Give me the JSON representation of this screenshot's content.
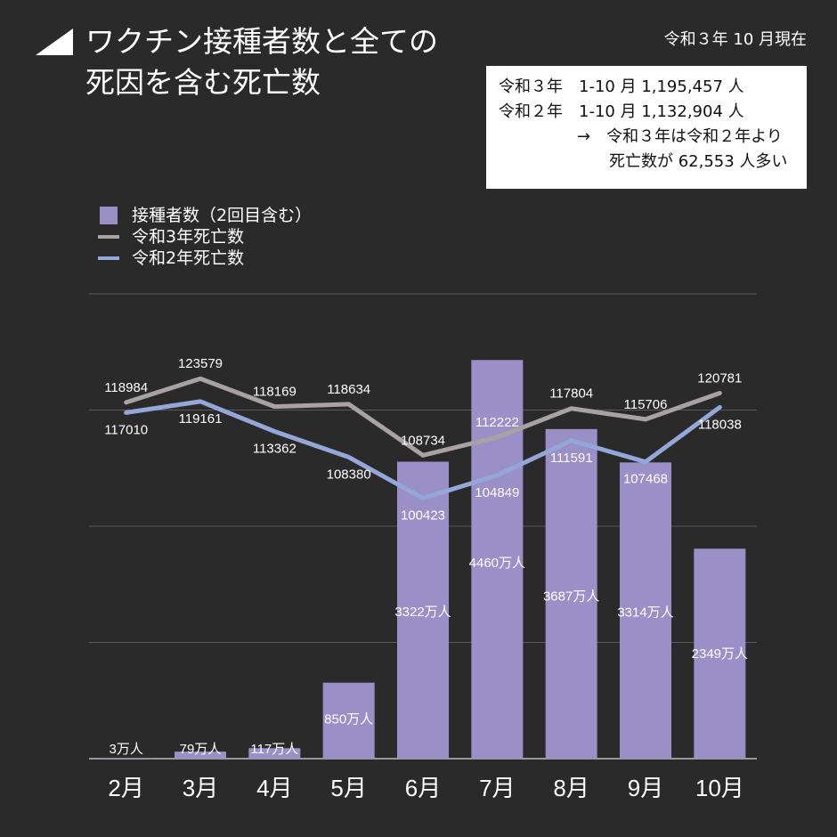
{
  "title_line1": "ワクチン接種者数と全ての",
  "title_line2": "死因を含む死亡数",
  "date_note": "令和３年 10 月現在",
  "infobox": {
    "line1": "令和３年　1-10 月 1,195,457 人",
    "line2": "令和２年　1-10 月 1,132,904 人",
    "line3": "→　令和３年は令和２年より",
    "line4": "死亡数が 62,553 人多い"
  },
  "colors": {
    "bar": "#9b8fc8",
    "line_r3": "#a9a2a3",
    "line_r2": "#95a7d8",
    "grid": "#5a5a5a",
    "background": "#2a2a2a"
  },
  "chart_data": {
    "type": "bar",
    "categories": [
      "2月",
      "3月",
      "4月",
      "5月",
      "6月",
      "7月",
      "8月",
      "9月",
      "10月"
    ],
    "series": [
      {
        "name": "接種者数（2回目含む）",
        "type": "bar",
        "values": [
          3,
          79,
          117,
          850,
          3322,
          4460,
          3687,
          3314,
          2349
        ],
        "labels": [
          "3万人",
          "79万人",
          "117万人",
          "850万人",
          "3322万人",
          "4460万人",
          "3687万人",
          "3314万人",
          "2349万人"
        ],
        "unit": "万人"
      },
      {
        "name": "令和3年死亡数",
        "type": "line",
        "values": [
          118984,
          123579,
          118169,
          118634,
          108734,
          112222,
          117804,
          115706,
          120781
        ]
      },
      {
        "name": "令和2年死亡数",
        "type": "line",
        "values": [
          117010,
          119161,
          113362,
          108380,
          100423,
          104849,
          111591,
          107468,
          118038
        ]
      }
    ],
    "bar_axis": [
      0,
      5200
    ],
    "line_axis": [
      50000,
      140000
    ],
    "grid": true,
    "legend": "top-left"
  }
}
